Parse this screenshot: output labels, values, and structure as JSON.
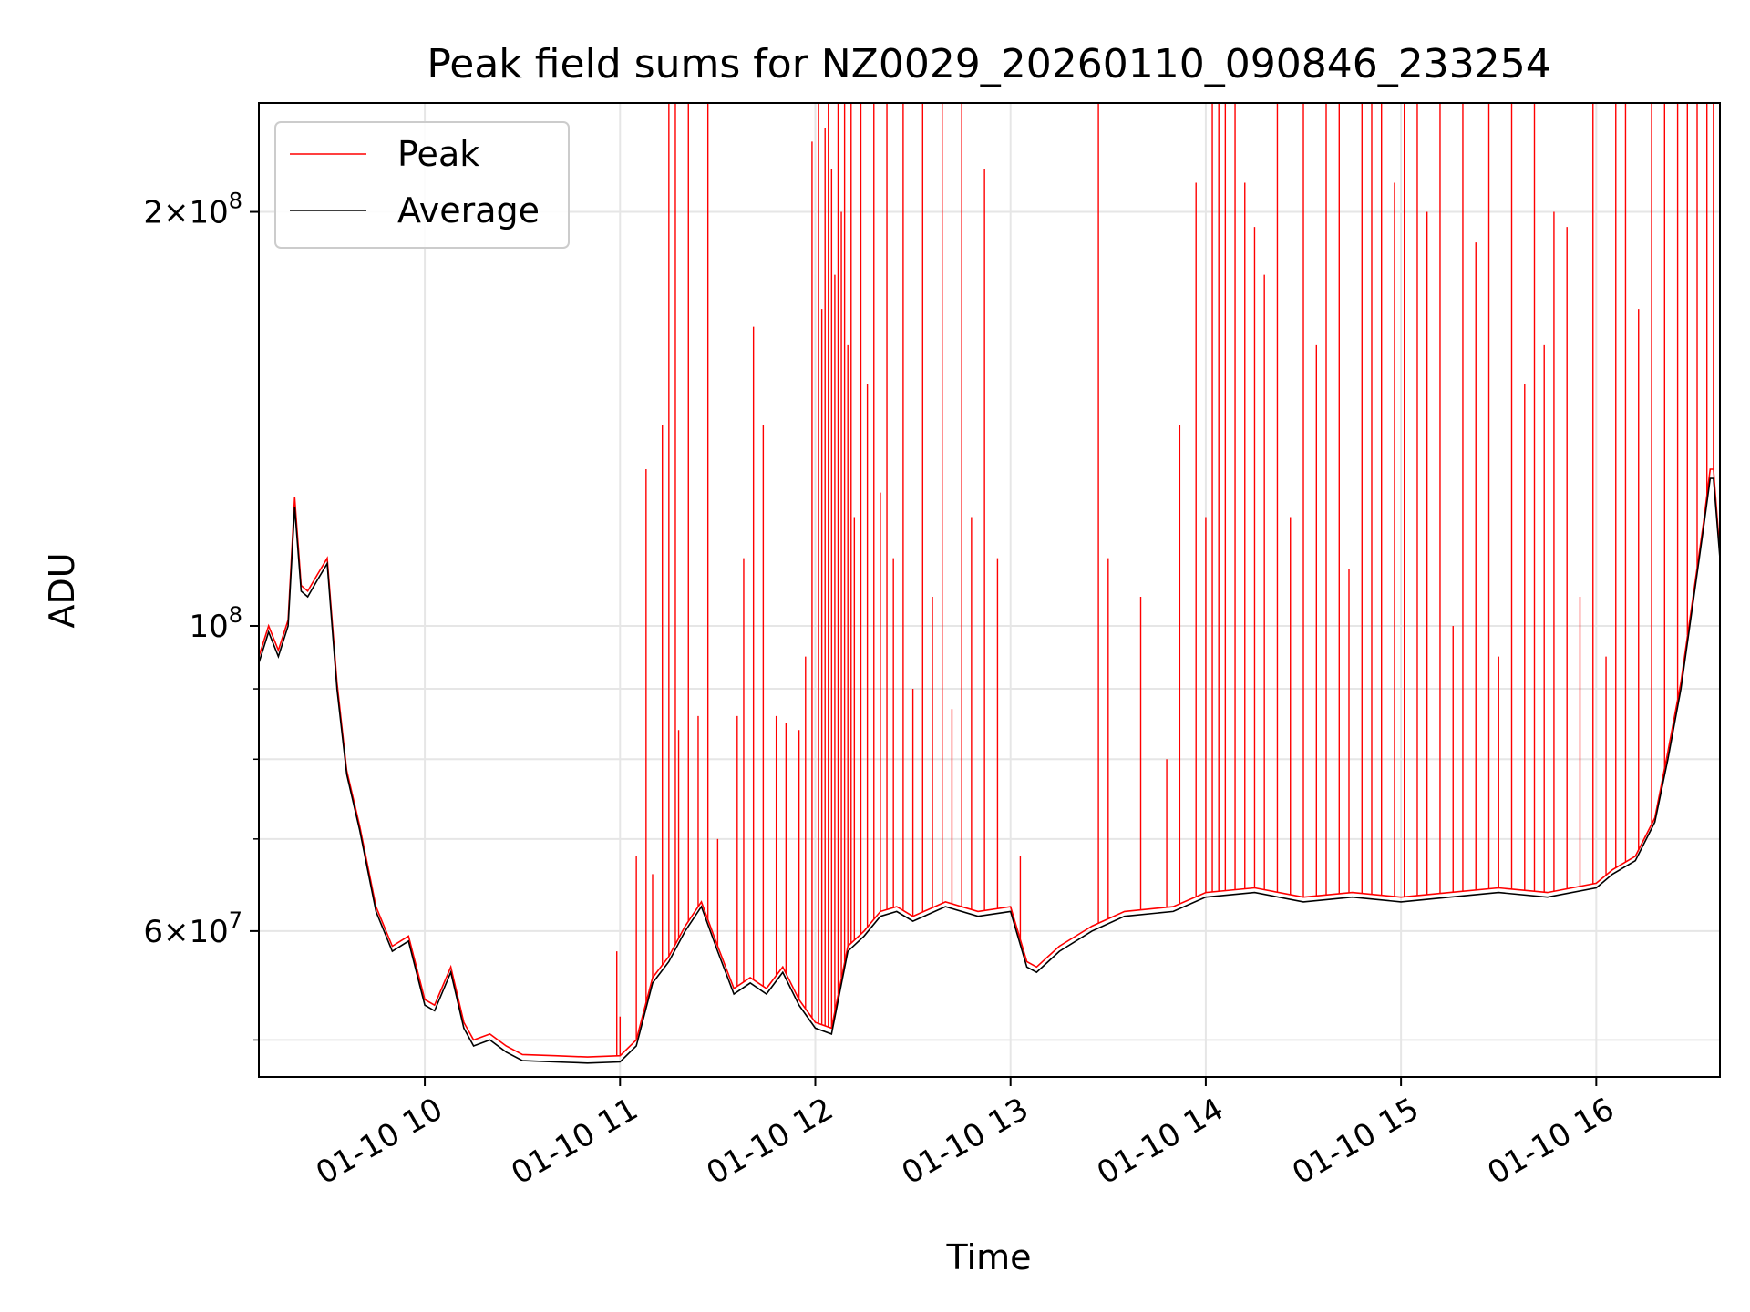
{
  "chart_data": {
    "type": "line",
    "title": "Peak field sums for NZ0029_20260110_090846_233254",
    "xlabel": "Time",
    "ylabel": "ADU",
    "y_scale": "log",
    "ylim": [
      47000000,
      240000000
    ],
    "xlim": [
      "2026-01-10 09:09",
      "2026-01-10 16:38"
    ],
    "grid": true,
    "legend": {
      "placement": "top-left",
      "entries": [
        "Peak",
        "Average"
      ]
    },
    "x_ticks": [
      {
        "label": "01-10 10",
        "time": "2026-01-10 10:00"
      },
      {
        "label": "01-10 11",
        "time": "2026-01-10 11:00"
      },
      {
        "label": "01-10 12",
        "time": "2026-01-10 12:00"
      },
      {
        "label": "01-10 13",
        "time": "2026-01-10 13:00"
      },
      {
        "label": "01-10 14",
        "time": "2026-01-10 14:00"
      },
      {
        "label": "01-10 15",
        "time": "2026-01-10 15:00"
      },
      {
        "label": "01-10 16",
        "time": "2026-01-10 16:00"
      }
    ],
    "y_ticks": [
      {
        "value": 60000000,
        "base": "6",
        "exp": "7"
      },
      {
        "value": 100000000,
        "base": "",
        "exp": "8"
      },
      {
        "value": 200000000,
        "base": "2",
        "exp": "8"
      }
    ],
    "series": [
      {
        "name": "Average",
        "color": "#000000",
        "x": [
          "2026-01-10 09:09",
          "2026-01-10 09:12",
          "2026-01-10 09:15",
          "2026-01-10 09:18",
          "2026-01-10 09:20",
          "2026-01-10 09:22",
          "2026-01-10 09:24",
          "2026-01-10 09:27",
          "2026-01-10 09:30",
          "2026-01-10 09:33",
          "2026-01-10 09:36",
          "2026-01-10 09:40",
          "2026-01-10 09:45",
          "2026-01-10 09:50",
          "2026-01-10 09:55",
          "2026-01-10 10:00",
          "2026-01-10 10:03",
          "2026-01-10 10:08",
          "2026-01-10 10:12",
          "2026-01-10 10:15",
          "2026-01-10 10:20",
          "2026-01-10 10:25",
          "2026-01-10 10:30",
          "2026-01-10 10:40",
          "2026-01-10 10:50",
          "2026-01-10 11:00",
          "2026-01-10 11:05",
          "2026-01-10 11:10",
          "2026-01-10 11:15",
          "2026-01-10 11:20",
          "2026-01-10 11:25",
          "2026-01-10 11:30",
          "2026-01-10 11:35",
          "2026-01-10 11:40",
          "2026-01-10 11:45",
          "2026-01-10 11:50",
          "2026-01-10 11:55",
          "2026-01-10 12:00",
          "2026-01-10 12:05",
          "2026-01-10 12:10",
          "2026-01-10 12:15",
          "2026-01-10 12:20",
          "2026-01-10 12:25",
          "2026-01-10 12:30",
          "2026-01-10 12:40",
          "2026-01-10 12:50",
          "2026-01-10 13:00",
          "2026-01-10 13:05",
          "2026-01-10 13:08",
          "2026-01-10 13:15",
          "2026-01-10 13:25",
          "2026-01-10 13:35",
          "2026-01-10 13:50",
          "2026-01-10 14:00",
          "2026-01-10 14:15",
          "2026-01-10 14:30",
          "2026-01-10 14:45",
          "2026-01-10 15:00",
          "2026-01-10 15:15",
          "2026-01-10 15:30",
          "2026-01-10 15:45",
          "2026-01-10 16:00",
          "2026-01-10 16:05",
          "2026-01-10 16:12",
          "2026-01-10 16:18",
          "2026-01-10 16:22",
          "2026-01-10 16:26",
          "2026-01-10 16:30",
          "2026-01-10 16:33",
          "2026-01-10 16:35",
          "2026-01-10 16:36",
          "2026-01-10 16:38"
        ],
        "values": [
          94000000,
          99000000,
          95000000,
          100000000,
          122000000,
          106000000,
          105000000,
          108000000,
          111000000,
          90000000,
          78000000,
          71000000,
          62000000,
          58000000,
          59000000,
          53000000,
          52500000,
          56000000,
          51000000,
          49500000,
          50000000,
          49000000,
          48300000,
          48200000,
          48100000,
          48200000,
          49500000,
          55000000,
          57000000,
          60000000,
          62500000,
          58000000,
          54000000,
          55000000,
          54000000,
          56000000,
          53000000,
          51000000,
          50500000,
          58000000,
          59500000,
          61500000,
          62000000,
          61000000,
          62500000,
          61500000,
          62000000,
          56500000,
          56000000,
          58000000,
          60000000,
          61500000,
          62000000,
          63500000,
          64000000,
          63000000,
          63500000,
          63000000,
          63500000,
          64000000,
          63500000,
          64500000,
          66000000,
          67500000,
          72000000,
          80000000,
          90000000,
          105000000,
          118000000,
          128000000,
          128000000,
          112000000
        ]
      },
      {
        "name": "Peak",
        "color": "#ff0000",
        "x": [
          "2026-01-10 09:09",
          "2026-01-10 09:12",
          "2026-01-10 09:15",
          "2026-01-10 09:18",
          "2026-01-10 09:20",
          "2026-01-10 09:22",
          "2026-01-10 09:24",
          "2026-01-10 09:27",
          "2026-01-10 09:30",
          "2026-01-10 09:33",
          "2026-01-10 09:36",
          "2026-01-10 09:40",
          "2026-01-10 09:45",
          "2026-01-10 09:50",
          "2026-01-10 09:55",
          "2026-01-10 10:00",
          "2026-01-10 10:03",
          "2026-01-10 10:08",
          "2026-01-10 10:12",
          "2026-01-10 10:15",
          "2026-01-10 10:20",
          "2026-01-10 10:25",
          "2026-01-10 10:30",
          "2026-01-10 10:40",
          "2026-01-10 10:50",
          "2026-01-10 11:00",
          "2026-01-10 11:05",
          "2026-01-10 11:10",
          "2026-01-10 11:15",
          "2026-01-10 11:20",
          "2026-01-10 11:25",
          "2026-01-10 11:30",
          "2026-01-10 11:35",
          "2026-01-10 11:40",
          "2026-01-10 11:45",
          "2026-01-10 11:50",
          "2026-01-10 11:55",
          "2026-01-10 12:00",
          "2026-01-10 12:05",
          "2026-01-10 12:10",
          "2026-01-10 12:15",
          "2026-01-10 12:20",
          "2026-01-10 12:25",
          "2026-01-10 12:30",
          "2026-01-10 12:40",
          "2026-01-10 12:50",
          "2026-01-10 13:00",
          "2026-01-10 13:05",
          "2026-01-10 13:08",
          "2026-01-10 13:15",
          "2026-01-10 13:25",
          "2026-01-10 13:35",
          "2026-01-10 13:50",
          "2026-01-10 14:00",
          "2026-01-10 14:15",
          "2026-01-10 14:30",
          "2026-01-10 14:45",
          "2026-01-10 15:00",
          "2026-01-10 15:15",
          "2026-01-10 15:30",
          "2026-01-10 15:45",
          "2026-01-10 16:00",
          "2026-01-10 16:05",
          "2026-01-10 16:12",
          "2026-01-10 16:18",
          "2026-01-10 16:22",
          "2026-01-10 16:26",
          "2026-01-10 16:30",
          "2026-01-10 16:33",
          "2026-01-10 16:35",
          "2026-01-10 16:36",
          "2026-01-10 16:38"
        ],
        "values": [
          95000000,
          100000000,
          96000000,
          101000000,
          124000000,
          107000000,
          106000000,
          109000000,
          112000000,
          91000000,
          78500000,
          71500000,
          62500000,
          58500000,
          59500000,
          53500000,
          53000000,
          56500000,
          51500000,
          50000000,
          50500000,
          49500000,
          48800000,
          48700000,
          48600000,
          48700000,
          50000000,
          55500000,
          57500000,
          60500000,
          63000000,
          58500000,
          54500000,
          55500000,
          54500000,
          56500000,
          53500000,
          51500000,
          51000000,
          58500000,
          60000000,
          62000000,
          62500000,
          61500000,
          63000000,
          62000000,
          62500000,
          57000000,
          56500000,
          58500000,
          60500000,
          62000000,
          62500000,
          64000000,
          64500000,
          63500000,
          64000000,
          63500000,
          64000000,
          64500000,
          64000000,
          65000000,
          66500000,
          68000000,
          72500000,
          81000000,
          91000000,
          106000000,
          119000000,
          130000000,
          130000000,
          113000000
        ],
        "spikes": [
          [
            "2026-01-10 10:59",
            58000000
          ],
          [
            "2026-01-10 11:00",
            52000000
          ],
          [
            "2026-01-10 11:05",
            68000000
          ],
          [
            "2026-01-10 11:08",
            130000000
          ],
          [
            "2026-01-10 11:10",
            66000000
          ],
          [
            "2026-01-10 11:13",
            140000000
          ],
          [
            "2026-01-10 11:15",
            240000000
          ],
          [
            "2026-01-10 11:17",
            240000000
          ],
          [
            "2026-01-10 11:18",
            84000000
          ],
          [
            "2026-01-10 11:21",
            240000000
          ],
          [
            "2026-01-10 11:24",
            86000000
          ],
          [
            "2026-01-10 11:27",
            240000000
          ],
          [
            "2026-01-10 11:30",
            70000000
          ],
          [
            "2026-01-10 11:36",
            86000000
          ],
          [
            "2026-01-10 11:38",
            112000000
          ],
          [
            "2026-01-10 11:41",
            165000000
          ],
          [
            "2026-01-10 11:44",
            140000000
          ],
          [
            "2026-01-10 11:48",
            86000000
          ],
          [
            "2026-01-10 11:51",
            85000000
          ],
          [
            "2026-01-10 11:55",
            84000000
          ],
          [
            "2026-01-10 11:57",
            95000000
          ],
          [
            "2026-01-10 11:59",
            225000000
          ],
          [
            "2026-01-10 12:01",
            240000000
          ],
          [
            "2026-01-10 12:02",
            170000000
          ],
          [
            "2026-01-10 12:03",
            230000000
          ],
          [
            "2026-01-10 12:04",
            240000000
          ],
          [
            "2026-01-10 12:05",
            215000000
          ],
          [
            "2026-01-10 12:06",
            180000000
          ],
          [
            "2026-01-10 12:07",
            240000000
          ],
          [
            "2026-01-10 12:08",
            200000000
          ],
          [
            "2026-01-10 12:09",
            240000000
          ],
          [
            "2026-01-10 12:10",
            160000000
          ],
          [
            "2026-01-10 12:11",
            240000000
          ],
          [
            "2026-01-10 12:12",
            120000000
          ],
          [
            "2026-01-10 12:14",
            240000000
          ],
          [
            "2026-01-10 12:16",
            150000000
          ],
          [
            "2026-01-10 12:18",
            240000000
          ],
          [
            "2026-01-10 12:20",
            125000000
          ],
          [
            "2026-01-10 12:22",
            240000000
          ],
          [
            "2026-01-10 12:24",
            112000000
          ],
          [
            "2026-01-10 12:27",
            240000000
          ],
          [
            "2026-01-10 12:30",
            90000000
          ],
          [
            "2026-01-10 12:33",
            240000000
          ],
          [
            "2026-01-10 12:36",
            105000000
          ],
          [
            "2026-01-10 12:39",
            240000000
          ],
          [
            "2026-01-10 12:42",
            87000000
          ],
          [
            "2026-01-10 12:45",
            240000000
          ],
          [
            "2026-01-10 12:48",
            120000000
          ],
          [
            "2026-01-10 12:52",
            215000000
          ],
          [
            "2026-01-10 12:56",
            112000000
          ],
          [
            "2026-01-10 13:03",
            68000000
          ],
          [
            "2026-01-10 13:27",
            240000000
          ],
          [
            "2026-01-10 13:30",
            112000000
          ],
          [
            "2026-01-10 13:40",
            105000000
          ],
          [
            "2026-01-10 13:48",
            80000000
          ],
          [
            "2026-01-10 13:52",
            140000000
          ],
          [
            "2026-01-10 13:57",
            210000000
          ],
          [
            "2026-01-10 14:00",
            120000000
          ],
          [
            "2026-01-10 14:02",
            240000000
          ],
          [
            "2026-01-10 14:04",
            240000000
          ],
          [
            "2026-01-10 14:06",
            240000000
          ],
          [
            "2026-01-10 14:09",
            240000000
          ],
          [
            "2026-01-10 14:12",
            210000000
          ],
          [
            "2026-01-10 14:15",
            195000000
          ],
          [
            "2026-01-10 14:18",
            180000000
          ],
          [
            "2026-01-10 14:22",
            240000000
          ],
          [
            "2026-01-10 14:26",
            120000000
          ],
          [
            "2026-01-10 14:30",
            240000000
          ],
          [
            "2026-01-10 14:34",
            160000000
          ],
          [
            "2026-01-10 14:37",
            240000000
          ],
          [
            "2026-01-10 14:41",
            240000000
          ],
          [
            "2026-01-10 14:44",
            110000000
          ],
          [
            "2026-01-10 14:48",
            240000000
          ],
          [
            "2026-01-10 14:51",
            240000000
          ],
          [
            "2026-01-10 14:54",
            240000000
          ],
          [
            "2026-01-10 14:58",
            210000000
          ],
          [
            "2026-01-10 15:01",
            240000000
          ],
          [
            "2026-01-10 15:05",
            240000000
          ],
          [
            "2026-01-10 15:08",
            200000000
          ],
          [
            "2026-01-10 15:12",
            240000000
          ],
          [
            "2026-01-10 15:16",
            100000000
          ],
          [
            "2026-01-10 15:19",
            240000000
          ],
          [
            "2026-01-10 15:23",
            190000000
          ],
          [
            "2026-01-10 15:27",
            240000000
          ],
          [
            "2026-01-10 15:30",
            95000000
          ],
          [
            "2026-01-10 15:34",
            240000000
          ],
          [
            "2026-01-10 15:38",
            150000000
          ],
          [
            "2026-01-10 15:41",
            240000000
          ],
          [
            "2026-01-10 15:44",
            160000000
          ],
          [
            "2026-01-10 15:47",
            200000000
          ],
          [
            "2026-01-10 15:51",
            195000000
          ],
          [
            "2026-01-10 15:55",
            105000000
          ],
          [
            "2026-01-10 15:59",
            240000000
          ],
          [
            "2026-01-10 16:03",
            95000000
          ],
          [
            "2026-01-10 16:06",
            240000000
          ],
          [
            "2026-01-10 16:09",
            240000000
          ],
          [
            "2026-01-10 16:13",
            170000000
          ],
          [
            "2026-01-10 16:17",
            240000000
          ],
          [
            "2026-01-10 16:21",
            240000000
          ],
          [
            "2026-01-10 16:25",
            240000000
          ],
          [
            "2026-01-10 16:28",
            240000000
          ],
          [
            "2026-01-10 16:31",
            240000000
          ],
          [
            "2026-01-10 16:34",
            240000000
          ],
          [
            "2026-01-10 16:36",
            240000000
          ]
        ]
      }
    ]
  }
}
